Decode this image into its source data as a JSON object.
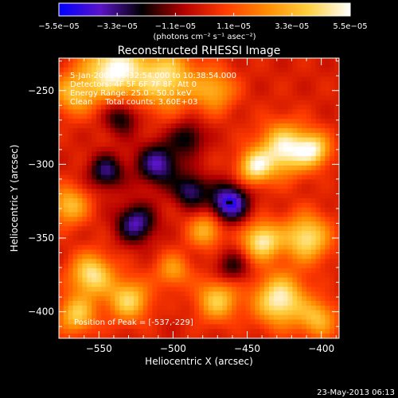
{
  "colorbar": {
    "tick_labels": [
      "−5.5e−05",
      "−3.3e−05",
      "−1.1e−05",
      "1.1e−05",
      "3.3e−05",
      "5.5e−05"
    ],
    "tick_values": [
      -5.5e-05,
      -3.3e-05,
      -1.1e-05,
      1.1e-05,
      3.3e-05,
      5.5e-05
    ],
    "range": [
      -5.5e-05,
      5.5e-05
    ],
    "units": "(photons cm⁻² s⁻¹ asec⁻²)",
    "colors": [
      "#0000ff",
      "#5a14c8",
      "#000000",
      "#b40000",
      "#ff3c00",
      "#ff8c00",
      "#ffd040",
      "#ffffff"
    ]
  },
  "chart_data": {
    "type": "heatmap",
    "title": "Reconstructed RHESSI Image",
    "xlabel": "Heliocentric X (arcsec)",
    "ylabel": "Heliocentric Y (arcsec)",
    "xlim": [
      -577,
      -388
    ],
    "ylim": [
      -418,
      -228
    ],
    "x_ticks": [
      -550,
      -500,
      -450,
      -400
    ],
    "x_tick_labels": [
      "−550",
      "−500",
      "−450",
      "−400"
    ],
    "y_ticks": [
      -250,
      -300,
      -350,
      -400
    ],
    "y_tick_labels": [
      "−250",
      "−300",
      "−350",
      "−400"
    ],
    "peak": [
      -537,
      -229
    ],
    "flux_range": [
      -5.5e-05,
      5.5e-05
    ],
    "sources": [
      {
        "x": -540,
        "y": -236,
        "amp": 1.0,
        "sigma": 14
      },
      {
        "x": -505,
        "y": -242,
        "amp": 0.8,
        "sigma": 14
      },
      {
        "x": -567,
        "y": -252,
        "amp": 0.6,
        "sigma": 10
      },
      {
        "x": -472,
        "y": -250,
        "amp": 0.55,
        "sigma": 10
      },
      {
        "x": -425,
        "y": -290,
        "amp": 0.95,
        "sigma": 12
      },
      {
        "x": -445,
        "y": -302,
        "amp": 0.8,
        "sigma": 8
      },
      {
        "x": -405,
        "y": -290,
        "amp": 0.75,
        "sigma": 8
      },
      {
        "x": -410,
        "y": -350,
        "amp": 0.85,
        "sigma": 11
      },
      {
        "x": -440,
        "y": -352,
        "amp": 0.9,
        "sigma": 9
      },
      {
        "x": -428,
        "y": -392,
        "amp": 0.95,
        "sigma": 12
      },
      {
        "x": -402,
        "y": -405,
        "amp": 0.6,
        "sigma": 9
      },
      {
        "x": -470,
        "y": -392,
        "amp": 0.7,
        "sigma": 10
      },
      {
        "x": -555,
        "y": -375,
        "amp": 0.85,
        "sigma": 10
      },
      {
        "x": -530,
        "y": -392,
        "amp": 0.75,
        "sigma": 10
      },
      {
        "x": -565,
        "y": -402,
        "amp": 0.7,
        "sigma": 9
      },
      {
        "x": -570,
        "y": -328,
        "amp": 0.65,
        "sigma": 9
      },
      {
        "x": -478,
        "y": -345,
        "amp": 0.6,
        "sigma": 8
      },
      {
        "x": -500,
        "y": -372,
        "amp": 0.5,
        "sigma": 8
      },
      {
        "x": -545,
        "y": -305,
        "amp": -0.6,
        "sigma": 8
      },
      {
        "x": -510,
        "y": -300,
        "amp": -0.7,
        "sigma": 10
      },
      {
        "x": -462,
        "y": -326,
        "amp": -0.9,
        "sigma": 9
      },
      {
        "x": -525,
        "y": -340,
        "amp": -0.7,
        "sigma": 9
      },
      {
        "x": -488,
        "y": -318,
        "amp": -0.6,
        "sigma": 8
      },
      {
        "x": -535,
        "y": -268,
        "amp": -0.5,
        "sigma": 8
      },
      {
        "x": -460,
        "y": -370,
        "amp": -0.4,
        "sigma": 8
      },
      {
        "x": -490,
        "y": -282,
        "amp": -0.45,
        "sigma": 8
      }
    ]
  },
  "info": {
    "time_range": "5-Jan-2003 10:32:54.000 to 10:38:54.000",
    "detectors": "Detectors: 4F 5F 6F 7F 8F, Att 0",
    "energy": "Energy Range: 25.0 - 50.0 keV",
    "method_counts": "Clean     Total counts: 3.60E+03",
    "peak_label": "Position of Peak = [-537,-229]"
  },
  "footer": {
    "timestamp": "23-May-2013 06:13"
  }
}
